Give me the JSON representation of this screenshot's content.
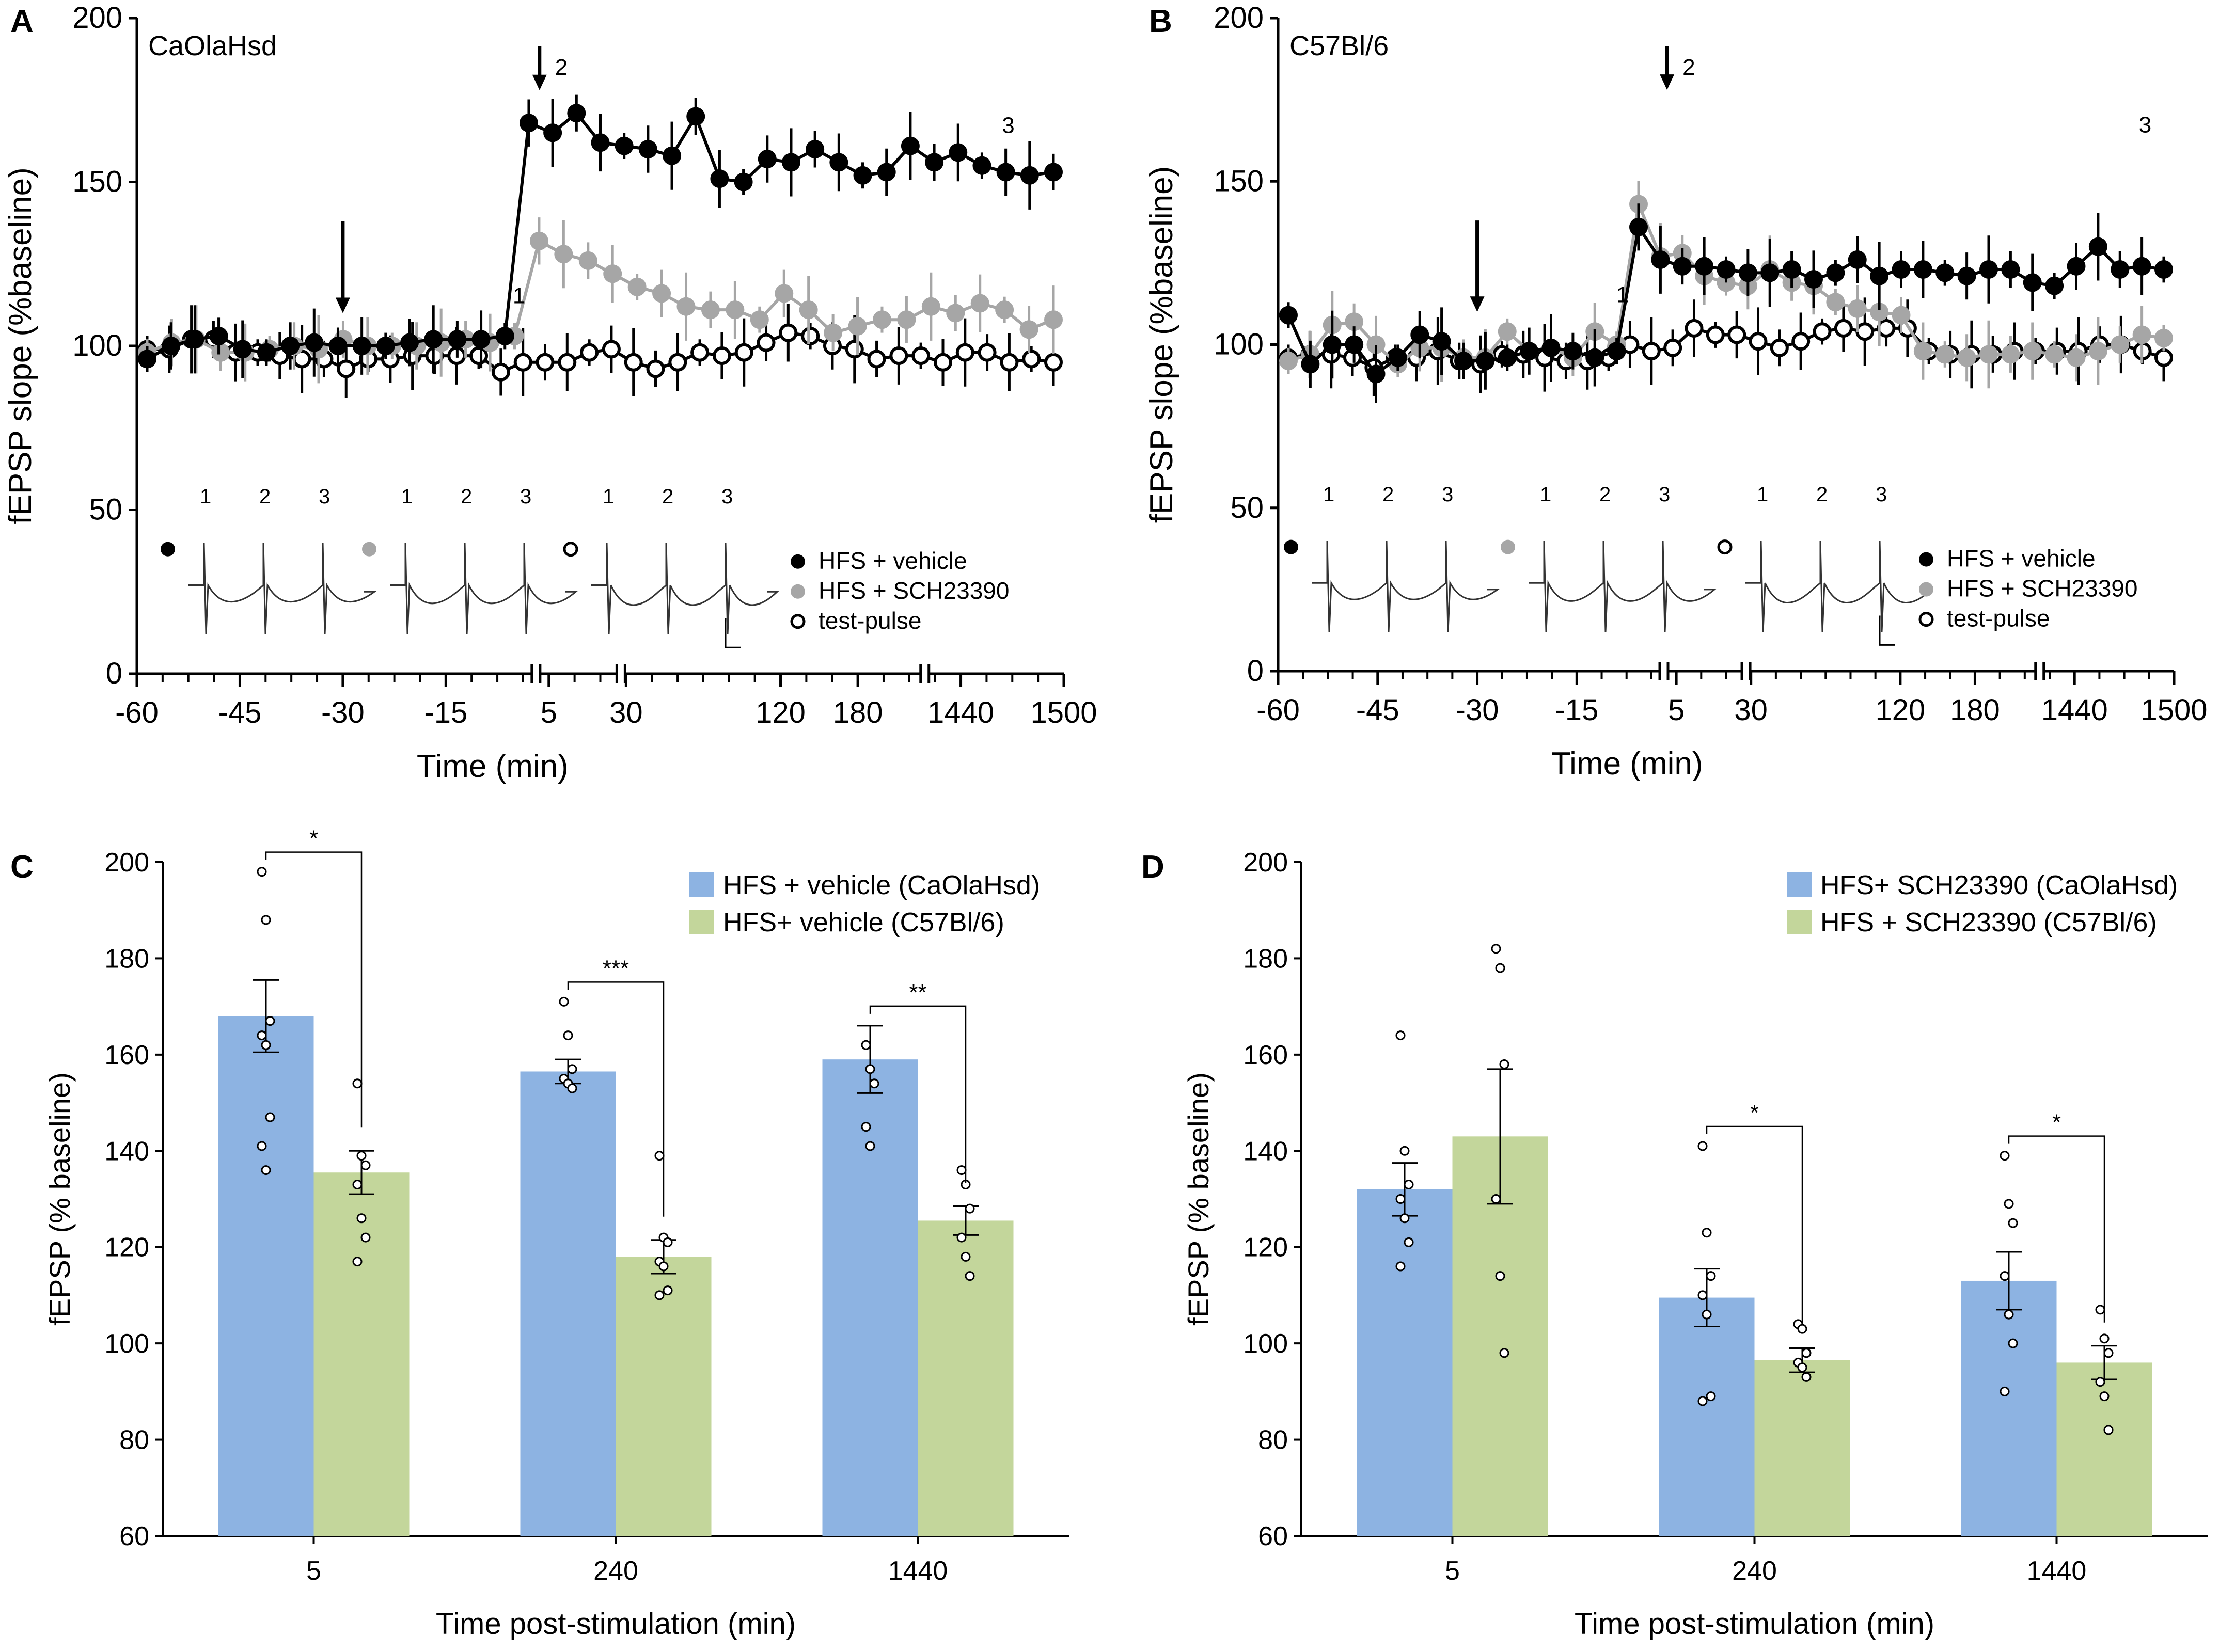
{
  "colors": {
    "vehicle": "#000000",
    "sch": "#a6a6a6",
    "test": "#000000",
    "bar_blue": "#8db3e2",
    "bar_green": "#c3d69b"
  },
  "chart_data": [
    {
      "panel": "A",
      "type": "line",
      "title": "CaOlaHsd",
      "xlabel": "Time (min)",
      "ylabel": "fEPSP slope (%baseline)",
      "ylim": [
        0,
        200
      ],
      "yticks": [
        "0",
        "50",
        "100",
        "150",
        "200"
      ],
      "xticks": [
        "-60",
        "-45",
        "-30",
        "-15",
        "5",
        "30",
        "120",
        "180",
        "1440",
        "1500"
      ],
      "x_index_note": "points are indexed 0..31 in acquisition order; ticks at indices 0,4,8,12,16,19,25,28,32,36 (axis breaks after tick 5 and 30 and before 1440)",
      "arrows": [
        {
          "x_index": 8,
          "label": ""
        },
        {
          "x_index": 16,
          "label": "2"
        }
      ],
      "markers": [
        {
          "x_index": 15,
          "label": "1"
        },
        {
          "x_index": 34,
          "label": "3"
        }
      ],
      "series": [
        {
          "name": "HFS + vehicle",
          "style": "filled-black",
          "values": [
            96,
            100,
            102,
            103,
            99,
            98,
            100,
            101,
            100,
            100,
            100,
            101,
            102,
            102,
            102,
            103,
            168,
            165,
            171,
            162,
            161,
            160,
            158,
            170,
            151,
            150,
            157,
            156,
            160,
            156,
            152,
            153,
            161,
            156,
            159,
            155,
            153,
            152,
            153
          ]
        },
        {
          "name": "HFS + SCH23390",
          "style": "filled-grey",
          "values": [
            98,
            101,
            102,
            98,
            98,
            99,
            100,
            99,
            102,
            100,
            100,
            100,
            101,
            102,
            101,
            103,
            132,
            128,
            126,
            122,
            118,
            116,
            112,
            111,
            111,
            108,
            116,
            111,
            104,
            106,
            108,
            108,
            112,
            110,
            113,
            111,
            105,
            108
          ]
        },
        {
          "name": "test-pulse",
          "style": "open",
          "values": [
            99,
            99,
            102,
            102,
            98,
            98,
            97,
            96,
            96,
            93,
            96,
            96,
            97,
            97,
            97,
            97,
            92,
            95,
            95,
            95,
            98,
            99,
            95,
            93,
            95,
            98,
            97,
            98,
            101,
            104,
            103,
            100,
            99,
            96,
            97,
            97,
            95,
            98,
            98,
            95,
            96,
            95
          ]
        }
      ],
      "traces": {
        "set_labels": [
          "1",
          "2",
          "3"
        ]
      },
      "legend": [
        "HFS + vehicle",
        "HFS + SCH23390",
        "test-pulse"
      ]
    },
    {
      "panel": "B",
      "type": "line",
      "title": "C57Bl/6",
      "xlabel": "Time (min)",
      "ylabel": "fEPSP slope (%baseline)",
      "ylim": [
        0,
        200
      ],
      "yticks": [
        "0",
        "50",
        "100",
        "150",
        "200"
      ],
      "xticks": [
        "-60",
        "-45",
        "-30",
        "-15",
        "5",
        "30",
        "120",
        "180",
        "1440",
        "1500"
      ],
      "arrows": [
        {
          "x_index": 8,
          "label": ""
        },
        {
          "x_index": 16,
          "label": "2"
        }
      ],
      "markers": [
        {
          "x_index": 14,
          "label": "1"
        },
        {
          "x_index": 35,
          "label": "3"
        }
      ],
      "series": [
        {
          "name": "HFS + vehicle",
          "style": "filled-black",
          "values": [
            109,
            94,
            100,
            100,
            91,
            96,
            103,
            101,
            95,
            95,
            96,
            98,
            99,
            98,
            96,
            98,
            136,
            126,
            124,
            124,
            123,
            122,
            122,
            123,
            120,
            122,
            126,
            121,
            123,
            123,
            122,
            121,
            123,
            123,
            119,
            118,
            124,
            130,
            123,
            124,
            123
          ]
        },
        {
          "name": "HFS + SCH23390",
          "style": "filled-grey",
          "values": [
            95,
            97,
            106,
            107,
            100,
            94,
            99,
            99,
            96,
            96,
            104,
            98,
            99,
            96,
            104,
            100,
            143,
            127,
            128,
            121,
            119,
            118,
            123,
            119,
            118,
            113,
            111,
            110,
            109,
            98,
            97,
            96,
            97,
            97,
            98,
            97,
            96,
            98,
            100,
            103,
            102
          ]
        },
        {
          "name": "test-pulse",
          "style": "open",
          "values": [
            96,
            97,
            97,
            96,
            93,
            96,
            96,
            98,
            95,
            94,
            97,
            97,
            96,
            95,
            95,
            96,
            100,
            98,
            99,
            105,
            103,
            103,
            101,
            99,
            101,
            104,
            105,
            104,
            105,
            105,
            98,
            97,
            97,
            97,
            98,
            98,
            98,
            98,
            100,
            100,
            98,
            96
          ]
        }
      ],
      "traces": {
        "set_labels": [
          "1",
          "2",
          "3"
        ]
      },
      "legend": [
        "HFS + vehicle",
        "HFS + SCH23390",
        "test-pulse"
      ]
    },
    {
      "panel": "C",
      "type": "bar",
      "title": "",
      "xlabel": "Time post-stimulation (min)",
      "ylabel": "fEPSP (% baseline)",
      "ylim": [
        60,
        200
      ],
      "yticks": [
        "60",
        "80",
        "100",
        "120",
        "140",
        "160",
        "180",
        "200"
      ],
      "categories": [
        "5",
        "240",
        "1440"
      ],
      "series": [
        {
          "name": "HFS + vehicle (CaOlaHsd)",
          "values": [
            168,
            156.5,
            159
          ],
          "sem": [
            7.5,
            2.5,
            7
          ],
          "points": [
            [
              198,
              188,
              167,
              164,
              162,
              147,
              141,
              136
            ],
            [
              171,
              164,
              157,
              155,
              154,
              153
            ],
            [
              162,
              157,
              154,
              145,
              141
            ]
          ]
        },
        {
          "name": "HFS+ vehicle (C57Bl/6)",
          "values": [
            135.5,
            118,
            125.5
          ],
          "sem": [
            4.5,
            3.5,
            3
          ],
          "points": [
            [
              154,
              139,
              137,
              133,
              126,
              122,
              117
            ],
            [
              139,
              122,
              121,
              117,
              116,
              111,
              110
            ],
            [
              136,
              133,
              128,
              122,
              118,
              114
            ]
          ]
        }
      ],
      "significance": [
        "*",
        "***",
        "**"
      ],
      "legend": [
        "HFS + vehicle (CaOlaHsd)",
        "HFS+ vehicle (C57Bl/6)"
      ]
    },
    {
      "panel": "D",
      "type": "bar",
      "title": "",
      "xlabel": "Time post-stimulation (min)",
      "ylabel": "fEPSP (% baseline)",
      "ylim": [
        60,
        200
      ],
      "yticks": [
        "60",
        "80",
        "100",
        "120",
        "140",
        "160",
        "180",
        "200"
      ],
      "categories": [
        "5",
        "240",
        "1440"
      ],
      "series": [
        {
          "name": "HFS+ SCH23390 (CaOlaHsd)",
          "values": [
            132,
            109.5,
            113
          ],
          "sem": [
            5.5,
            6,
            6
          ],
          "points": [
            [
              164,
              140,
              133,
              130,
              126,
              121,
              116
            ],
            [
              141,
              123,
              114,
              110,
              106,
              89,
              88
            ],
            [
              139,
              129,
              125,
              114,
              106,
              100,
              90
            ]
          ]
        },
        {
          "name": "HFS + SCH23390 (C57Bl/6)",
          "values": [
            143,
            96.5,
            96
          ],
          "sem": [
            14,
            2.5,
            3.5
          ],
          "points": [
            [
              182,
              178,
              158,
              130,
              114,
              98
            ],
            [
              104,
              103,
              98,
              96,
              95,
              93
            ],
            [
              107,
              101,
              98,
              92,
              89,
              82
            ]
          ]
        }
      ],
      "significance": [
        "*",
        "*"
      ],
      "legend": [
        "HFS+ SCH23390 (CaOlaHsd)",
        "HFS + SCH23390 (C57Bl/6)"
      ]
    }
  ],
  "panel_labels": [
    "A",
    "B",
    "C",
    "D"
  ]
}
